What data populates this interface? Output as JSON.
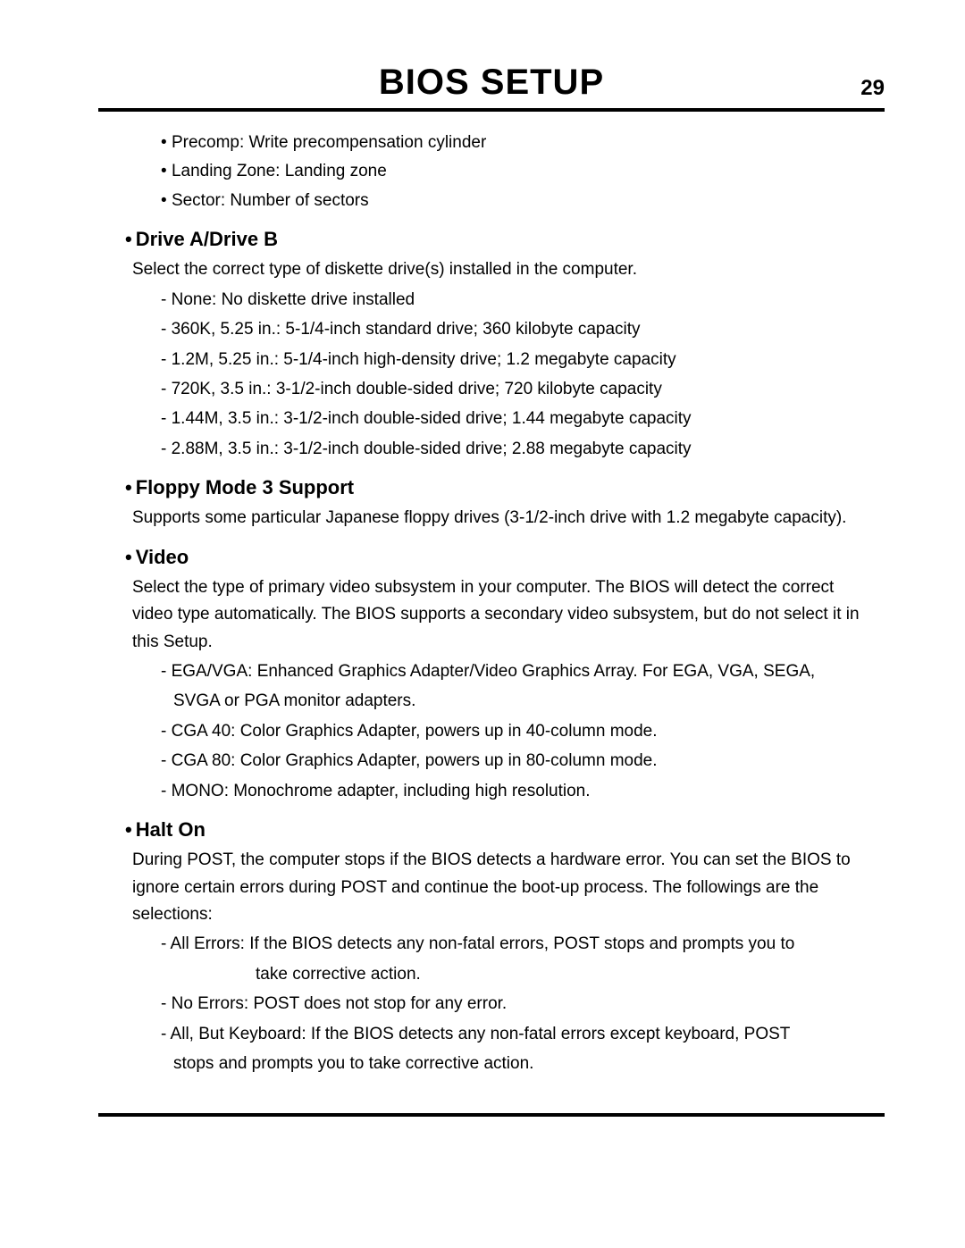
{
  "header": {
    "title": "BIOS SETUP",
    "page_number": "29"
  },
  "top_bullets": [
    "Precomp:  Write precompensation cylinder",
    "Landing Zone:  Landing zone",
    "Sector:  Number of sectors"
  ],
  "sections": [
    {
      "title": "Drive A/Drive B",
      "body": "Select the correct type of diskette drive(s) installed in the computer.",
      "dashes": [
        "- None:  No diskette drive installed",
        "- 360K, 5.25 in.:  5-1/4-inch standard drive; 360 kilobyte capacity",
        "- 1.2M,  5.25 in.:  5-1/4-inch high-density drive; 1.2 megabyte capacity",
        "- 720K,   3.5 in.:  3-1/2-inch double-sided drive; 720 kilobyte capacity",
        "- 1.44M,  3.5 in.:  3-1/2-inch double-sided drive; 1.44 megabyte capacity",
        "- 2.88M,  3.5 in.:  3-1/2-inch double-sided drive; 2.88 megabyte capacity"
      ]
    },
    {
      "title": "Floppy Mode 3 Support",
      "body": "Supports some particular Japanese floppy drives (3-1/2-inch drive with 1.2 megabyte capacity).",
      "dashes": []
    },
    {
      "title": "Video",
      "body": "Select the type of primary video subsystem in your computer.  The BIOS will detect the correct video type automatically.  The BIOS supports a secondary video subsystem, but do not select it in this Setup.",
      "dashes": [
        "- EGA/VGA:  Enhanced Graphics Adapter/Video Graphics Array.  For EGA, VGA, SEGA,",
        "  SVGA or PGA monitor adapters.",
        "- CGA 40:  Color Graphics Adapter, powers up in 40-column mode.",
        "- CGA 80:  Color Graphics Adapter, powers up in 80-column mode.",
        "- MONO:  Monochrome adapter, including high resolution."
      ]
    },
    {
      "title": "Halt On",
      "body": "During POST, the computer stops if the BIOS detects a hardware error.  You can set the BIOS to ignore certain errors during POST and continue the boot-up process.  The followings are the selections:",
      "dashes": [
        "- All Errors:  If the BIOS detects any non-fatal errors, POST stops and prompts you to",
        "take corrective action.",
        "- No Errors:  POST does not stop for any error.",
        "- All, But Keyboard:  If the BIOS detects any non-fatal errors except keyboard, POST",
        "  stops and prompts you to take corrective action."
      ],
      "dash_classes": [
        "",
        "indent",
        "",
        "",
        "sub"
      ]
    }
  ]
}
